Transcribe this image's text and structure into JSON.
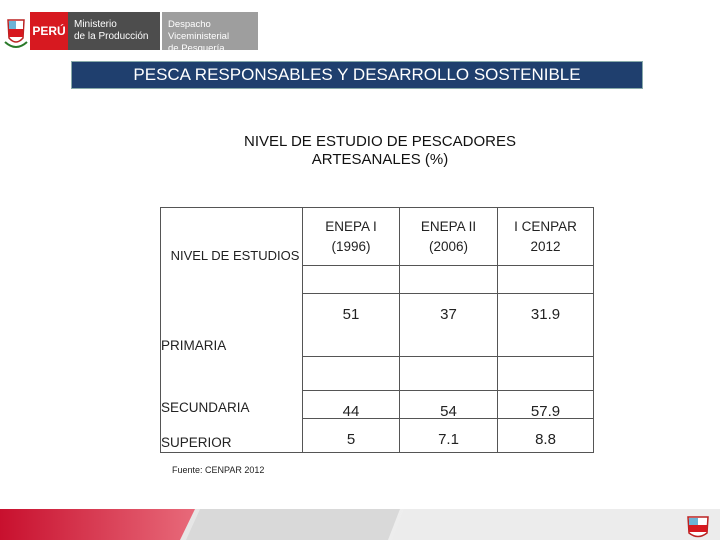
{
  "header": {
    "country": "PERÚ",
    "ministry": [
      "Ministerio",
      "de la Producción"
    ],
    "office": [
      "Despacho Viceministerial",
      "de Pesquería"
    ]
  },
  "title": "PESCA RESPONSABLES Y DESARROLLO SOSTENIBLE",
  "table": {
    "title": [
      "NIVEL DE ESTUDIO DE PESCADORES",
      "ARTESANALES (%)"
    ],
    "row_header": "NIVEL DE ESTUDIOS",
    "columns": [
      [
        "ENEPA I",
        "(1996)"
      ],
      [
        "ENEPA II",
        "(2006)"
      ],
      [
        "I CENPAR",
        "2012"
      ]
    ],
    "rows": [
      {
        "label": "PRIMARIA",
        "values": [
          51,
          37,
          31.9
        ]
      },
      {
        "label": "SECUNDARIA",
        "values": [
          44,
          54,
          57.9
        ]
      },
      {
        "label": "SUPERIOR",
        "values": [
          5,
          7.1,
          8.8
        ]
      }
    ],
    "source": "Fuente: CENPAR 2012"
  }
}
